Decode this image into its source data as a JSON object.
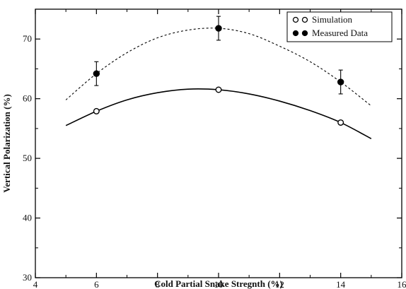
{
  "chart_data": {
    "type": "scatter",
    "title": "",
    "xlabel": "Cold Partial Snake Stregnth (%)",
    "ylabel": "Vertical Polarization (%)",
    "xlim": [
      4,
      16
    ],
    "ylim": [
      30,
      75
    ],
    "x_ticks": [
      4,
      6,
      8,
      10,
      12,
      14,
      16
    ],
    "y_ticks": [
      30,
      40,
      50,
      60,
      70
    ],
    "grid": false,
    "legend_position": "top-right",
    "series": [
      {
        "name": "Simulation",
        "marker": "open-circle",
        "color": "#000000",
        "x": [
          6,
          10,
          14
        ],
        "y": [
          57.9,
          61.5,
          56.0
        ],
        "fit": {
          "style": "solid",
          "x": [
            5,
            6,
            7,
            8,
            9,
            10,
            11,
            12,
            13,
            14,
            15
          ],
          "y": [
            55.5,
            57.9,
            59.8,
            61.0,
            61.6,
            61.5,
            60.8,
            59.6,
            58.0,
            56.0,
            53.3
          ]
        }
      },
      {
        "name": "Measured Data",
        "marker": "filled-circle",
        "color": "#000000",
        "x": [
          6,
          10,
          14
        ],
        "y": [
          64.2,
          71.8,
          62.8
        ],
        "yerr": [
          2.0,
          2.0,
          2.0
        ],
        "fit": {
          "style": "dashed",
          "x": [
            5,
            6,
            7,
            8,
            9,
            10,
            11,
            12,
            13,
            14,
            15
          ],
          "y": [
            59.8,
            64.2,
            67.7,
            70.2,
            71.5,
            71.8,
            70.9,
            68.8,
            66.2,
            62.8,
            58.8
          ]
        }
      }
    ]
  }
}
